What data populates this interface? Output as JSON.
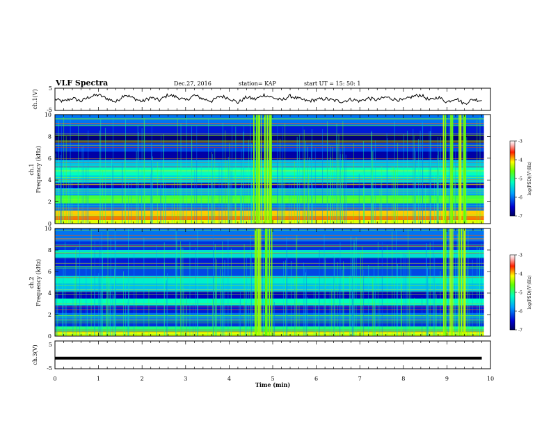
{
  "header": {
    "title": "VLF Spectra",
    "date": "Dec.27, 2016",
    "station": "station= KAP",
    "start": "start  UT =   15: 50: 1"
  },
  "chart_data": [
    {
      "type": "line",
      "panel": "ch1-waveform",
      "ylabel": "ch.1(V)",
      "ylim": [
        -5,
        5
      ],
      "yticks": [
        "5",
        "-5"
      ],
      "xlim": [
        0,
        10
      ],
      "grid": false,
      "x": [
        0,
        0.2,
        0.4,
        0.6,
        0.8,
        1.0,
        1.2,
        1.4,
        1.6,
        1.8,
        2.0,
        2.2,
        2.4,
        2.6,
        2.8,
        3.0,
        3.2,
        3.4,
        3.6,
        3.8,
        4.0,
        4.2,
        4.4,
        4.6,
        4.8,
        5.0,
        5.2,
        5.4,
        5.6,
        5.8,
        6.0,
        6.2,
        6.4,
        6.6,
        6.8,
        7.0,
        7.2,
        7.4,
        7.6,
        7.8,
        8.0,
        8.2,
        8.4,
        8.6,
        8.8,
        9.0,
        9.2,
        9.4,
        9.6,
        9.8
      ],
      "values": [
        0.0,
        -1.0,
        0.5,
        -0.8,
        1.2,
        2.0,
        0.3,
        -1.2,
        2.2,
        0.5,
        -1.0,
        0.8,
        -0.5,
        2.0,
        1.0,
        -0.5,
        1.8,
        0.2,
        -0.8,
        1.5,
        0.5,
        -1.5,
        1.0,
        0.0,
        2.0,
        0.8,
        -0.5,
        1.5,
        0.2,
        -0.8,
        -0.2,
        0.3,
        -0.5,
        -1.0,
        0.0,
        -0.8,
        0.5,
        -0.3,
        1.0,
        0.0,
        -0.5,
        1.2,
        2.0,
        -0.5,
        1.0,
        -1.2,
        0.5,
        -2.0,
        0.0,
        -0.5
      ]
    },
    {
      "type": "heatmap",
      "panel": "ch1-spectrogram",
      "ylabel": "ch.1",
      "ylabel2": "Frequency (kHz)",
      "ylim": [
        0,
        10
      ],
      "yticks": [
        "0",
        "2",
        "4",
        "6",
        "8",
        "10"
      ],
      "xlim": [
        0,
        10
      ],
      "colorbar": {
        "label": "log(PSD)(V²/Hz)",
        "min": -7,
        "max": -3,
        "ticks": [
          "-3",
          "-4",
          "-5",
          "-6",
          "-7"
        ]
      },
      "bands": [
        {
          "f": 0.15,
          "level": -4.2
        },
        {
          "f": 0.5,
          "level": -3.8
        },
        {
          "f": 0.9,
          "level": -4.0
        },
        {
          "f": 1.5,
          "level": -6.0
        },
        {
          "f": 2.2,
          "level": -4.8
        },
        {
          "f": 3.0,
          "level": -5.8
        },
        {
          "f": 3.5,
          "level": -6.6
        },
        {
          "f": 4.0,
          "level": -5.5
        },
        {
          "f": 4.8,
          "level": -5.2
        },
        {
          "f": 5.5,
          "level": -5.6
        },
        {
          "f": 6.2,
          "level": -6.7
        },
        {
          "f": 7.0,
          "level": -6.2
        },
        {
          "f": 7.8,
          "level": -6.9
        },
        {
          "f": 8.5,
          "level": -6.4
        },
        {
          "f": 9.5,
          "level": -6.0
        }
      ],
      "bursts_min": [
        4.6,
        4.7,
        4.85,
        4.95,
        8.95,
        9.1,
        9.3,
        9.4
      ]
    },
    {
      "type": "heatmap",
      "panel": "ch2-spectrogram",
      "ylabel": "ch.2",
      "ylabel2": "Frequency (kHz)",
      "ylim": [
        0,
        10
      ],
      "yticks": [
        "0",
        "2",
        "4",
        "6",
        "8",
        "10"
      ],
      "xlim": [
        0,
        10
      ],
      "colorbar": {
        "label": "log(PSD)(V²/Hz)",
        "min": -7,
        "max": -3,
        "ticks": [
          "-3",
          "-4",
          "-5",
          "-6",
          "-7"
        ]
      },
      "bands": [
        {
          "f": 0.2,
          "level": -4.2
        },
        {
          "f": 0.6,
          "level": -5.0
        },
        {
          "f": 1.2,
          "level": -6.3
        },
        {
          "f": 1.8,
          "level": -6.0
        },
        {
          "f": 2.5,
          "level": -6.4
        },
        {
          "f": 3.2,
          "level": -5.2
        },
        {
          "f": 3.8,
          "level": -6.6
        },
        {
          "f": 4.5,
          "level": -5.6
        },
        {
          "f": 5.2,
          "level": -5.3
        },
        {
          "f": 6.0,
          "level": -6.2
        },
        {
          "f": 7.0,
          "level": -6.4
        },
        {
          "f": 7.6,
          "level": -5.4
        },
        {
          "f": 8.4,
          "level": -6.3
        },
        {
          "f": 9.2,
          "level": -6.0
        }
      ],
      "bursts_min": [
        4.6,
        4.7,
        4.85,
        4.95,
        8.95,
        9.1,
        9.3,
        9.4
      ]
    },
    {
      "type": "line",
      "panel": "ch3-waveform",
      "ylabel": "ch.3(V)",
      "ylim": [
        -5,
        5
      ],
      "yticks": [
        "5",
        "-5"
      ],
      "xlim": [
        0,
        10
      ],
      "xlabel": "Time  (min)",
      "xticks": [
        "0",
        "1",
        "2",
        "3",
        "4",
        "5",
        "6",
        "7",
        "8",
        "9",
        "10"
      ],
      "x": [
        0,
        9.8
      ],
      "values": [
        -1.2,
        -1.2
      ]
    }
  ]
}
